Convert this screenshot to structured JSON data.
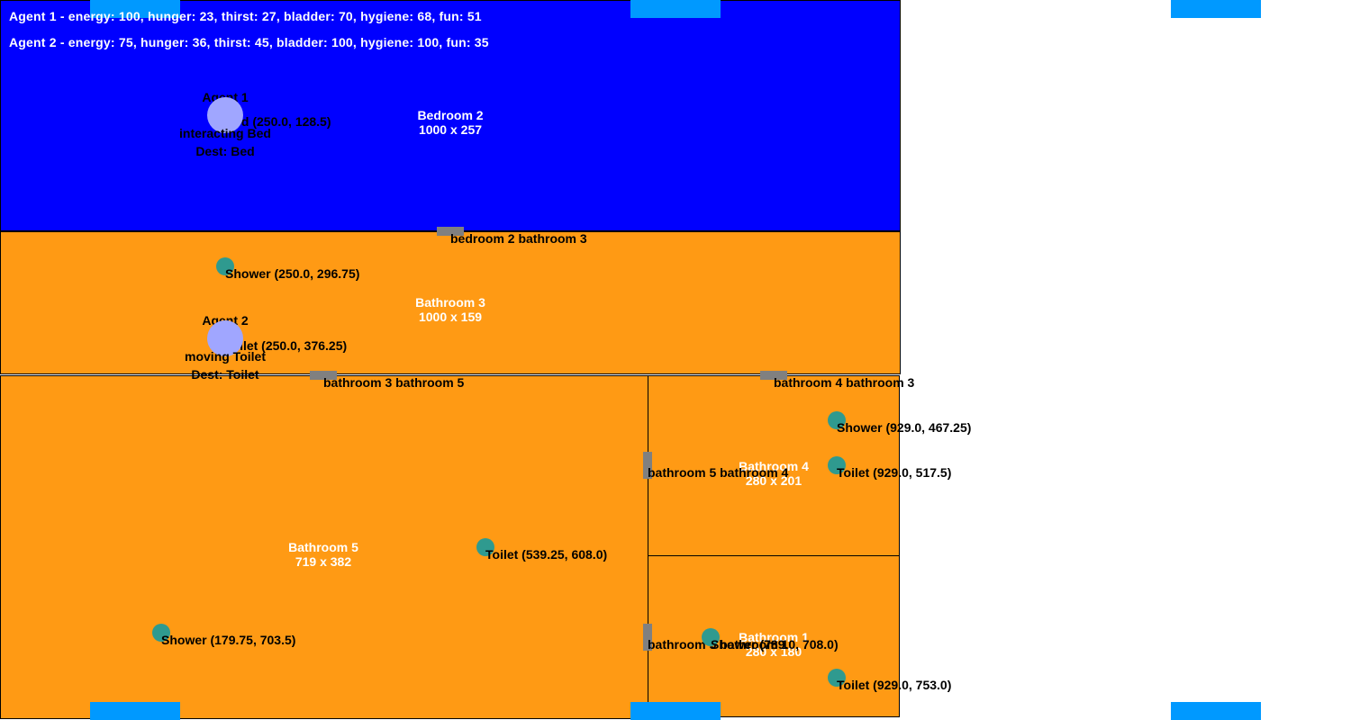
{
  "status": [
    "Agent 1 - energy: 100, hunger: 23, thirst: 27, bladder: 70, hygiene: 68, fun: 51",
    "Agent 2 - energy: 75, hunger: 36, thirst: 45, bladder: 100, hygiene: 100, fun: 35"
  ],
  "rooms": {
    "bedroom2": {
      "name": "Bedroom 2",
      "size": "1000 x 257",
      "color": "#0000ff"
    },
    "bathroom3": {
      "name": "Bathroom 3",
      "size": "1000 x 159",
      "color": "#ff9a14"
    },
    "bathroom5": {
      "name": "Bathroom 5",
      "size": "719 x 382",
      "color": "#ff9a14"
    },
    "bathroom4": {
      "name": "Bathroom 4",
      "size": "280 x 201",
      "color": "#ff9a14"
    },
    "bathroom1": {
      "name": "Bathroom 1",
      "size": "280 x 180",
      "color": "#ff9a14"
    }
  },
  "doors": {
    "d1": "bedroom 2 bathroom 3",
    "d2": "bathroom 3 bathroom 5",
    "d3": "bathroom 4 bathroom 3",
    "d4": "bathroom 5 bathroom 4",
    "d5": "bathroom 5 bathroom 1"
  },
  "objects": {
    "bed": "Bed (250.0, 128.5)",
    "shower3": "Shower (250.0, 296.75)",
    "toilet3": "Toilet (250.0, 376.25)",
    "shower4": "Shower (929.0, 467.25)",
    "toilet4": "Toilet (929.0, 517.5)",
    "toilet5": "Toilet (539.25, 608.0)",
    "shower5": "Shower (179.75, 703.5)",
    "shower1": "Shower (789.0, 708.0)",
    "toilet1": "Toilet (929.0, 753.0)"
  },
  "agents": {
    "a1": {
      "name": "Agent 1",
      "action": "interacting Bed",
      "dest": "Dest: Bed"
    },
    "a2": {
      "name": "Agent 2",
      "action": "moving Toilet",
      "dest": "Dest: Toilet"
    }
  },
  "colors": {
    "marker": "#0099ff",
    "door": "#808080",
    "object": "#2f9a8f",
    "agent": "#a0a6ff"
  }
}
